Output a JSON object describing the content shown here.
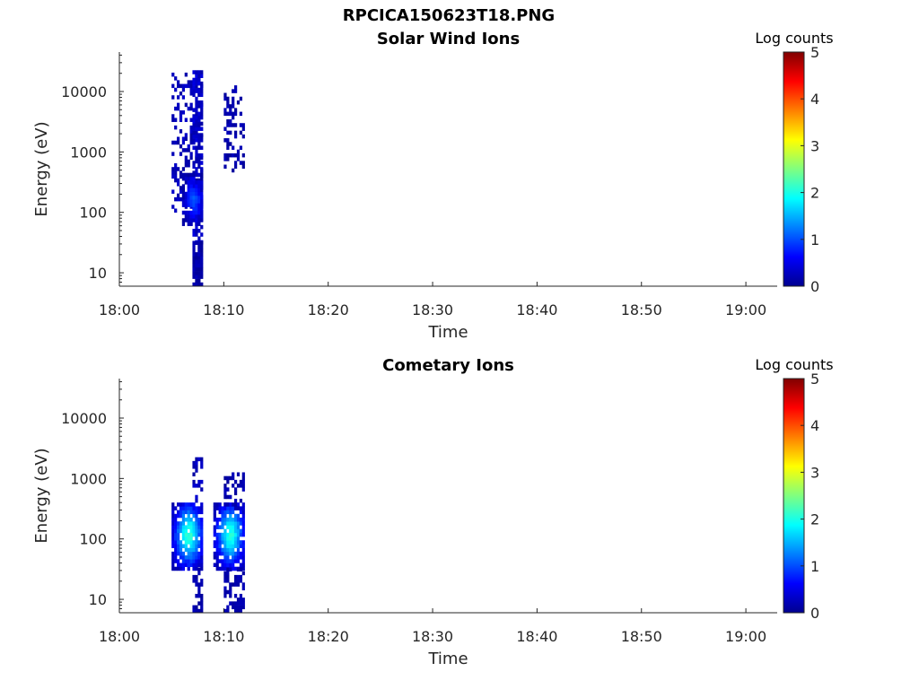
{
  "figure": {
    "title": "RPCICA150623T18.PNG"
  },
  "colormap": "jet",
  "chart_data": [
    {
      "type": "heatmap",
      "title": "Solar Wind Ions",
      "xlabel": "Time",
      "ylabel": "Energy (eV)",
      "x_scale": "time",
      "y_scale": "log",
      "xlim": [
        "18:00",
        "19:03"
      ],
      "ylim": [
        6,
        45000
      ],
      "x_ticks": [
        "18:00",
        "18:10",
        "18:20",
        "18:30",
        "18:40",
        "18:50",
        "19:00"
      ],
      "y_ticks": [
        "10",
        "100",
        "1000",
        "10000"
      ],
      "colorbar": {
        "label": "Log counts",
        "range": [
          0,
          5
        ],
        "ticks": [
          "0",
          "1",
          "2",
          "3",
          "4",
          "5"
        ]
      },
      "regions": [
        {
          "t_start": "18:05",
          "t_end": "18:08",
          "e_min": 100,
          "e_max": 20000,
          "level": 0.4,
          "density": 0.35,
          "fill": "sparse"
        },
        {
          "t_start": "18:07",
          "t_end": "18:08",
          "e_min": 30,
          "e_max": 20000,
          "level": 0.5,
          "density": 0.65,
          "fill": "sparse"
        },
        {
          "t_start": "18:06",
          "t_end": "18:08",
          "e_min": 60,
          "e_max": 400,
          "level": 0.9,
          "density": 0.9,
          "fill": "gaussian"
        },
        {
          "t_start": "18:07",
          "t_end": "18:08",
          "e_min": 6,
          "e_max": 30,
          "level": 0.3,
          "density": 0.9,
          "fill": "sparse"
        },
        {
          "t_start": "18:10",
          "t_end": "18:12",
          "e_min": 400,
          "e_max": 12000,
          "level": 0.3,
          "density": 0.35,
          "fill": "sparse"
        }
      ]
    },
    {
      "type": "heatmap",
      "title": "Cometary Ions",
      "xlabel": "Time",
      "ylabel": "Energy (eV)",
      "x_scale": "time",
      "y_scale": "log",
      "xlim": [
        "18:00",
        "19:03"
      ],
      "ylim": [
        6,
        45000
      ],
      "x_ticks": [
        "18:00",
        "18:10",
        "18:20",
        "18:30",
        "18:40",
        "18:50",
        "19:00"
      ],
      "y_ticks": [
        "10",
        "100",
        "1000",
        "10000"
      ],
      "colorbar": {
        "label": "Log counts",
        "range": [
          0,
          5
        ],
        "ticks": [
          "0",
          "1",
          "2",
          "3",
          "4",
          "5"
        ]
      },
      "regions": [
        {
          "t_start": "18:05",
          "t_end": "18:08",
          "e_min": 30,
          "e_max": 400,
          "level": 2.0,
          "density": 0.85,
          "fill": "gaussian"
        },
        {
          "t_start": "18:09",
          "t_end": "18:12",
          "e_min": 30,
          "e_max": 400,
          "level": 1.9,
          "density": 0.85,
          "fill": "gaussian"
        },
        {
          "t_start": "18:07",
          "t_end": "18:08",
          "e_min": 400,
          "e_max": 2500,
          "level": 0.4,
          "density": 0.45,
          "fill": "sparse"
        },
        {
          "t_start": "18:10",
          "t_end": "18:12",
          "e_min": 300,
          "e_max": 1200,
          "level": 0.3,
          "density": 0.4,
          "fill": "sparse"
        },
        {
          "t_start": "18:07",
          "t_end": "18:08",
          "e_min": 6,
          "e_max": 30,
          "level": 0.3,
          "density": 0.6,
          "fill": "sparse"
        },
        {
          "t_start": "18:10",
          "t_end": "18:12",
          "e_min": 6,
          "e_max": 30,
          "level": 0.3,
          "density": 0.6,
          "fill": "sparse"
        }
      ]
    }
  ]
}
